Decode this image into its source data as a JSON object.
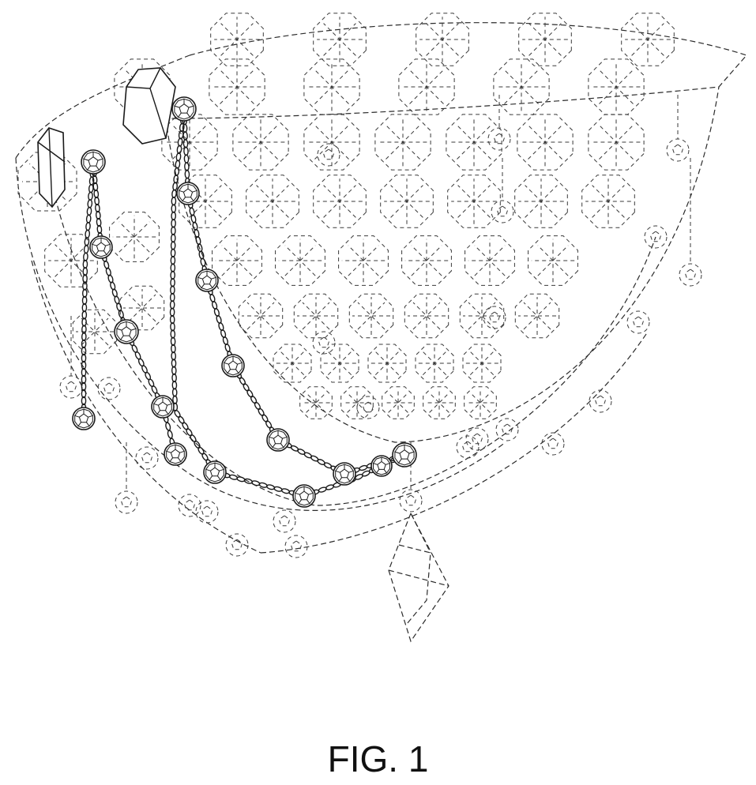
{
  "figure": {
    "caption": "FIG. 1"
  },
  "colors": {
    "ink": "#1a1a1a",
    "broken_line": "#2b2b2b",
    "background": "#ffffff"
  }
}
